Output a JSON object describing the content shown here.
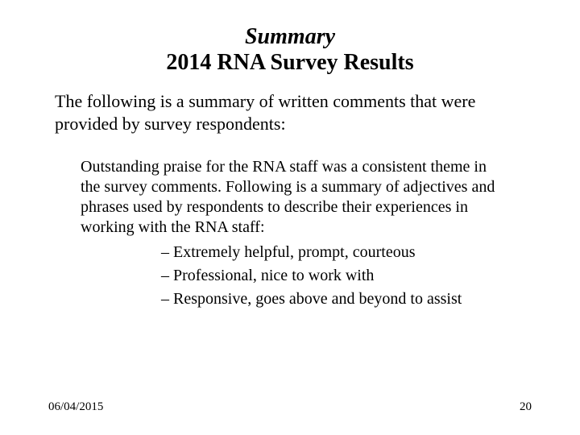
{
  "title": {
    "line1": "Summary",
    "line2": "2014 RNA Survey Results"
  },
  "intro": "The following is a summary of written comments that were provided by survey respondents:",
  "body": "Outstanding praise for the RNA staff was a consistent theme in the survey comments. Following is a summary of adjectives and phrases used by respondents to describe their experiences in working with the RNA staff:",
  "bullets": [
    "Extremely helpful, prompt, courteous",
    "Professional, nice to work with",
    "Responsive, goes above and beyond to assist"
  ],
  "footer": {
    "date": "06/04/2015",
    "page": "20"
  },
  "style": {
    "background_color": "#ffffff",
    "text_color": "#000000",
    "font_family": "Times New Roman",
    "title_fontsize": 28,
    "intro_fontsize": 22,
    "body_fontsize": 20,
    "footer_fontsize": 15
  }
}
